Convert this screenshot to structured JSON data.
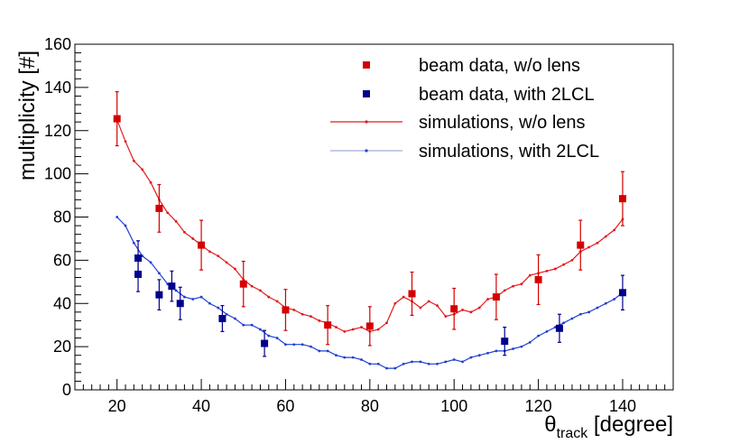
{
  "chart_data": {
    "type": "scatter",
    "title": "",
    "xlabel": {
      "symbol": "θ",
      "subscript": "track",
      "unit": " [degree]"
    },
    "ylabel": "multiplicity [#]",
    "xlim": [
      10,
      152
    ],
    "ylim": [
      0,
      160
    ],
    "x_ticks": [
      20,
      40,
      60,
      80,
      100,
      120,
      140
    ],
    "y_ticks": [
      0,
      20,
      40,
      60,
      80,
      100,
      120,
      140,
      160
    ],
    "legend_position": "top-right",
    "colors": {
      "red": "#e31a1c",
      "blue": "#1f3fd1",
      "red_marker": "#d40000",
      "blue_marker": "#00008b",
      "blue_legend_line": "#9fb0d8"
    },
    "series": [
      {
        "name": "beam data, w/o lens",
        "kind": "points",
        "color_key": "red_marker",
        "points": [
          {
            "x": 20,
            "y": 125.5,
            "err": 12.5
          },
          {
            "x": 30,
            "y": 84,
            "err": 11
          },
          {
            "x": 40,
            "y": 67,
            "err": 11.5
          },
          {
            "x": 50,
            "y": 49,
            "err": 10.5
          },
          {
            "x": 60,
            "y": 37,
            "err": 9.5
          },
          {
            "x": 70,
            "y": 30,
            "err": 9
          },
          {
            "x": 80,
            "y": 29.5,
            "err": 9
          },
          {
            "x": 90,
            "y": 44.5,
            "err": 10
          },
          {
            "x": 100,
            "y": 37.5,
            "err": 9.5
          },
          {
            "x": 110,
            "y": 43,
            "err": 10.5
          },
          {
            "x": 120,
            "y": 51,
            "err": 11.5
          },
          {
            "x": 130,
            "y": 67,
            "err": 11.5
          },
          {
            "x": 140,
            "y": 88.5,
            "err": 12.5
          }
        ]
      },
      {
        "name": "beam data, with 2LCL",
        "kind": "points",
        "color_key": "blue_marker",
        "points": [
          {
            "x": 25,
            "y": 61,
            "err": 8
          },
          {
            "x": 25,
            "y": 53.5,
            "err": 8
          },
          {
            "x": 30,
            "y": 44,
            "err": 7
          },
          {
            "x": 33,
            "y": 48,
            "err": 7
          },
          {
            "x": 35,
            "y": 40,
            "err": 7.5
          },
          {
            "x": 45,
            "y": 33,
            "err": 6
          },
          {
            "x": 55,
            "y": 21.5,
            "err": 6
          },
          {
            "x": 112,
            "y": 22.5,
            "err": 6.5
          },
          {
            "x": 125,
            "y": 28.5,
            "err": 6.5
          },
          {
            "x": 140,
            "y": 45,
            "err": 8
          }
        ]
      },
      {
        "name": "simulations, w/o lens",
        "kind": "line",
        "color_key": "red",
        "x": [
          20,
          22,
          24,
          26,
          28,
          30,
          32,
          34,
          36,
          38,
          40,
          42,
          44,
          46,
          48,
          50,
          52,
          54,
          56,
          58,
          60,
          62,
          64,
          66,
          68,
          70,
          72,
          74,
          76,
          78,
          80,
          82,
          84,
          86,
          88,
          90,
          92,
          94,
          96,
          98,
          100,
          102,
          104,
          106,
          108,
          110,
          112,
          114,
          116,
          118,
          120,
          122,
          124,
          126,
          128,
          130,
          132,
          134,
          136,
          138,
          140
        ],
        "y": [
          125,
          115,
          106,
          102,
          96,
          88,
          82,
          78,
          73,
          70,
          67,
          64,
          62,
          59,
          56,
          51,
          48,
          46,
          43,
          41,
          38,
          37,
          35,
          34,
          32,
          31,
          29,
          27,
          28,
          29,
          27,
          28,
          31,
          40,
          43,
          41,
          38,
          41,
          39,
          34,
          35,
          37,
          36,
          38,
          42,
          43,
          46,
          48,
          49,
          53,
          54,
          55,
          56,
          58,
          60,
          64,
          66,
          68,
          71,
          74,
          79
        ]
      },
      {
        "name": "simulations, with 2LCL",
        "kind": "line",
        "color_key": "blue",
        "x": [
          20,
          22,
          24,
          26,
          28,
          30,
          32,
          34,
          36,
          38,
          40,
          42,
          44,
          46,
          48,
          50,
          52,
          54,
          56,
          58,
          60,
          62,
          64,
          66,
          68,
          70,
          72,
          74,
          76,
          78,
          80,
          82,
          84,
          86,
          88,
          90,
          92,
          94,
          96,
          98,
          100,
          102,
          104,
          106,
          108,
          110,
          112,
          114,
          116,
          118,
          120,
          122,
          124,
          126,
          128,
          130,
          132,
          134,
          136,
          138,
          140
        ],
        "y": [
          80,
          76,
          68,
          62,
          59,
          54,
          49,
          46,
          43,
          42,
          43,
          40,
          38,
          35,
          33,
          30,
          30,
          28,
          25,
          24,
          21,
          21,
          21,
          20,
          18,
          18,
          16,
          15,
          15,
          14,
          12,
          12,
          10,
          10,
          12,
          13,
          13,
          12,
          12,
          13,
          14,
          13,
          15,
          16,
          17,
          18,
          18,
          19,
          20,
          22,
          25,
          27,
          29,
          31,
          33,
          35,
          36,
          38,
          40,
          42,
          45
        ]
      }
    ]
  }
}
